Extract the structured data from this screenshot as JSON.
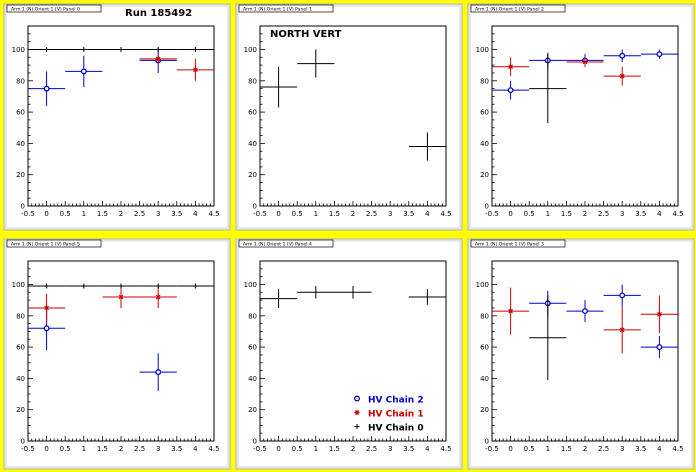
{
  "canvas": {
    "background": "#ffff00",
    "pad_fill": "#ffffff",
    "pad_frame": "#f0f0f0",
    "run_label": "Run 185492",
    "section_label": "NORTH VERT"
  },
  "legend": {
    "location": "bottom-right of center-bottom pad",
    "entries": [
      {
        "label": "HV Chain 2",
        "marker": "open-circle",
        "color": "#0000cc"
      },
      {
        "label": "HV Chain 1",
        "marker": "star",
        "color": "#cc0000"
      },
      {
        "label": "HV Chain 0",
        "marker": "plus",
        "color": "#000000"
      }
    ]
  },
  "chart_data": [
    {
      "type": "scatter",
      "title": "Arm 1 (N) Orient 1 (V) Panel 0",
      "xlim": [
        -0.5,
        4.5
      ],
      "ylim": [
        0,
        115
      ],
      "xticks": [
        "-0.5",
        "0",
        "0.5",
        "1",
        "1.5",
        "2",
        "2.5",
        "3",
        "3.5",
        "4",
        "4.5"
      ],
      "yticks": [
        "0",
        "20",
        "40",
        "60",
        "80",
        "100"
      ],
      "series": [
        {
          "name": "HV Chain 2",
          "color": "#0000cc",
          "marker": "open-circle",
          "x": [
            0,
            1,
            3
          ],
          "y": [
            75,
            86,
            93
          ],
          "yerr": [
            11,
            10,
            8
          ]
        },
        {
          "name": "HV Chain 1",
          "color": "#cc0000",
          "marker": "star",
          "x": [
            3,
            4
          ],
          "y": [
            94,
            87
          ],
          "yerr": [
            3,
            7
          ]
        },
        {
          "name": "HV Chain 0",
          "color": "#000000",
          "marker": "plus",
          "x": [
            0,
            1,
            2,
            3,
            4
          ],
          "y": [
            100,
            100,
            100,
            100,
            100
          ],
          "yerr": [
            0,
            0,
            0,
            0,
            0
          ]
        }
      ]
    },
    {
      "type": "scatter",
      "title": "Arm 1 (N) Orient 1 (V) Panel 1",
      "xlim": [
        -0.5,
        4.5
      ],
      "ylim": [
        0,
        115
      ],
      "xticks": [
        "-0.5",
        "0",
        "0.5",
        "1",
        "1.5",
        "2",
        "2.5",
        "3",
        "3.5",
        "4",
        "4.5"
      ],
      "yticks": [
        "0",
        "20",
        "40",
        "60",
        "80",
        "100"
      ],
      "series": [
        {
          "name": "HV Chain 0",
          "color": "#000000",
          "marker": "plus",
          "x": [
            0,
            1,
            4
          ],
          "y": [
            76,
            91,
            38
          ],
          "yerr": [
            13,
            9,
            9
          ]
        }
      ]
    },
    {
      "type": "scatter",
      "title": "Arm 1 (N) Orient 1 (V) Panel 2",
      "xlim": [
        -0.5,
        4.5
      ],
      "ylim": [
        0,
        115
      ],
      "xticks": [
        "-0.5",
        "0",
        "0.5",
        "1",
        "1.5",
        "2",
        "2.5",
        "3",
        "3.5",
        "4",
        "4.5"
      ],
      "yticks": [
        "0",
        "20",
        "40",
        "60",
        "80",
        "100"
      ],
      "series": [
        {
          "name": "HV Chain 2",
          "color": "#0000cc",
          "marker": "open-circle",
          "x": [
            0,
            1,
            2,
            3,
            4
          ],
          "y": [
            74,
            93,
            93,
            96,
            97
          ],
          "yerr": [
            6,
            5,
            4,
            4,
            3
          ]
        },
        {
          "name": "HV Chain 1",
          "color": "#cc0000",
          "marker": "star",
          "x": [
            0,
            2,
            3
          ],
          "y": [
            89,
            92,
            83
          ],
          "yerr": [
            6,
            3,
            6
          ]
        },
        {
          "name": "HV Chain 0",
          "color": "#000000",
          "marker": "plus",
          "x": [
            1
          ],
          "y": [
            75
          ],
          "yerr": [
            22
          ]
        }
      ]
    },
    {
      "type": "scatter",
      "title": "Arm 1 (N) Orient 1 (V) Panel 5",
      "xlim": [
        -0.5,
        4.5
      ],
      "ylim": [
        0,
        115
      ],
      "xticks": [
        "-0.5",
        "0",
        "0.5",
        "1",
        "1.5",
        "2",
        "2.5",
        "3",
        "3.5",
        "4",
        "4.5"
      ],
      "yticks": [
        "0",
        "20",
        "40",
        "60",
        "80",
        "100"
      ],
      "series": [
        {
          "name": "HV Chain 2",
          "color": "#0000cc",
          "marker": "open-circle",
          "x": [
            0,
            3
          ],
          "y": [
            72,
            44
          ],
          "yerr": [
            14,
            12
          ]
        },
        {
          "name": "HV Chain 1",
          "color": "#cc0000",
          "marker": "star",
          "x": [
            0,
            2,
            3
          ],
          "y": [
            85,
            92,
            92
          ],
          "yerr": [
            9,
            7,
            7
          ]
        },
        {
          "name": "HV Chain 0",
          "color": "#000000",
          "marker": "plus",
          "x": [
            0,
            1,
            2,
            3,
            4
          ],
          "y": [
            99,
            99,
            99,
            99,
            99
          ],
          "yerr": [
            0,
            0,
            0,
            0,
            0
          ]
        }
      ]
    },
    {
      "type": "scatter",
      "title": "Arm 1 (N) Orient 1 (V) Panel 4",
      "xlim": [
        -0.5,
        4.5
      ],
      "ylim": [
        0,
        115
      ],
      "xticks": [
        "-0.5",
        "0",
        "0.5",
        "1",
        "1.5",
        "2",
        "2.5",
        "3",
        "3.5",
        "4",
        "4.5"
      ],
      "yticks": [
        "0",
        "20",
        "40",
        "60",
        "80",
        "100"
      ],
      "series": [
        {
          "name": "HV Chain 0",
          "color": "#000000",
          "marker": "plus",
          "x": [
            0,
            1,
            2,
            4
          ],
          "y": [
            91,
            95,
            95,
            92
          ],
          "yerr": [
            6,
            4,
            4,
            5
          ]
        }
      ]
    },
    {
      "type": "scatter",
      "title": "Arm 1 (N) Orient 1 (V) Panel 3",
      "xlim": [
        -0.5,
        4.5
      ],
      "ylim": [
        0,
        115
      ],
      "xticks": [
        "-0.5",
        "0",
        "0.5",
        "1",
        "1.5",
        "2",
        "2.5",
        "3",
        "3.5",
        "4",
        "4.5"
      ],
      "yticks": [
        "0",
        "20",
        "40",
        "60",
        "80",
        "100"
      ],
      "series": [
        {
          "name": "HV Chain 2",
          "color": "#0000cc",
          "marker": "open-circle",
          "x": [
            1,
            2,
            3,
            4
          ],
          "y": [
            88,
            83,
            93,
            60
          ],
          "yerr": [
            8,
            7,
            7,
            7
          ]
        },
        {
          "name": "HV Chain 1",
          "color": "#cc0000",
          "marker": "star",
          "x": [
            0,
            3,
            4
          ],
          "y": [
            83,
            71,
            81
          ],
          "yerr": [
            15,
            15,
            12
          ]
        },
        {
          "name": "HV Chain 0",
          "color": "#000000",
          "marker": "plus",
          "x": [
            1
          ],
          "y": [
            66
          ],
          "yerr": [
            27
          ]
        }
      ]
    }
  ]
}
